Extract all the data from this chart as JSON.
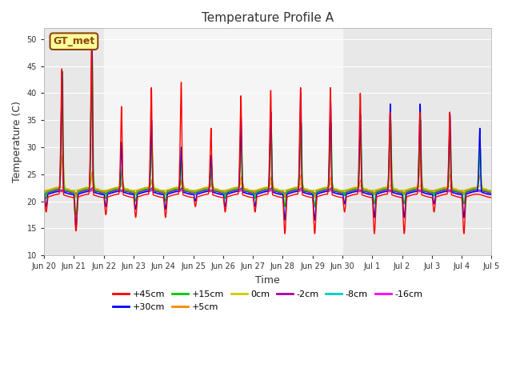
{
  "title": "Temperature Profile A",
  "xlabel": "Time",
  "ylabel": "Temperature (C)",
  "ylim": [
    10,
    52
  ],
  "yticks": [
    10,
    15,
    20,
    25,
    30,
    35,
    40,
    45,
    50
  ],
  "bg_color": "#e8e8e8",
  "bg_color2": "#f0f0f0",
  "fig_color": "#ffffff",
  "annotation_text": "GT_met",
  "annotation_bg": "#ffff99",
  "annotation_border": "#8B4513",
  "series_colors": {
    "+45cm": "#ff0000",
    "+30cm": "#0000ff",
    "+15cm": "#00cc00",
    "+5cm": "#ff8800",
    "0cm": "#cccc00",
    "-2cm": "#aa00aa",
    "-8cm": "#00cccc",
    "-16cm": "#ff00ff"
  },
  "x_tick_labels": [
    "Jun 20",
    "Jun 21",
    "Jun 22",
    "Jun 23",
    "Jun 24",
    "Jun 25",
    "Jun 26",
    "Jun 27",
    "Jun 28",
    "Jun 29",
    "Jun 30",
    "Jul 1",
    "Jul 2",
    "Jul 3",
    "Jul 4",
    "Jul 5"
  ],
  "num_days": 16,
  "points_per_day": 144,
  "base_temp": 21.5,
  "night_base": 21.0
}
